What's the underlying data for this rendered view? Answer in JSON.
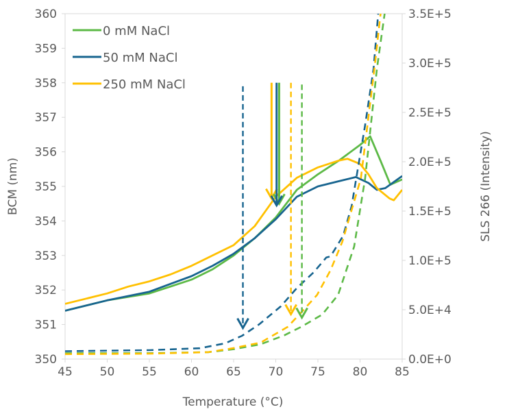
{
  "chart_data": {
    "type": "line",
    "xlabel": "Temperature (°C)",
    "ylabel": "BCM (nm)",
    "y2label": "SLS 266 (Intensity)",
    "xlim": [
      45,
      85
    ],
    "ylim": [
      350,
      360
    ],
    "y2lim": [
      0,
      350000
    ],
    "xticks": [
      45,
      50,
      55,
      60,
      65,
      70,
      75,
      80,
      85
    ],
    "yticks": [
      350,
      351,
      352,
      353,
      354,
      355,
      356,
      357,
      358,
      359,
      360
    ],
    "y2ticks": [
      "0.0E+0",
      "5.0E+4",
      "1.0E+5",
      "1.5E+5",
      "2.0E+5",
      "2.5E+5",
      "3.0E+5",
      "3.5E+5"
    ],
    "grid": false,
    "legend_position": "top-left",
    "series": [
      {
        "name": "0 mM NaCl",
        "color": "#5cb946",
        "axis": "left",
        "style": "solid",
        "x": [
          45,
          50,
          55,
          60,
          62.5,
          65,
          67.5,
          70,
          72.5,
          75,
          77.5,
          80,
          81.2,
          82.5,
          83.6,
          85
        ],
        "y": [
          351.4,
          351.7,
          351.9,
          352.3,
          352.6,
          353.0,
          353.5,
          354.1,
          354.9,
          355.35,
          355.75,
          356.2,
          356.45,
          355.7,
          355.05,
          355.2
        ]
      },
      {
        "name": "50 mM NaCl",
        "color": "#17648f",
        "axis": "left",
        "style": "solid",
        "x": [
          45,
          50,
          55,
          60,
          62.5,
          65,
          67.5,
          70,
          72.5,
          75,
          77.5,
          79.5,
          81,
          82,
          83,
          85
        ],
        "y": [
          351.4,
          351.7,
          351.95,
          352.4,
          352.7,
          353.05,
          353.5,
          354.05,
          354.7,
          355.0,
          355.15,
          355.27,
          355.1,
          354.9,
          354.95,
          355.3
        ]
      },
      {
        "name": "250 mM NaCl",
        "color": "#ffc000",
        "axis": "left",
        "style": "solid",
        "x": [
          45,
          47.5,
          50,
          52.5,
          55,
          57.5,
          60,
          62.5,
          65,
          67.5,
          70,
          72.5,
          75,
          77.5,
          78.5,
          80,
          81,
          82,
          83.5,
          84,
          85
        ],
        "y": [
          351.6,
          351.75,
          351.9,
          352.1,
          352.25,
          352.45,
          352.7,
          353.0,
          353.3,
          353.85,
          354.7,
          355.25,
          355.55,
          355.75,
          355.8,
          355.65,
          355.35,
          354.95,
          354.65,
          354.6,
          354.9
        ]
      },
      {
        "color": "#5cb946",
        "axis": "right",
        "style": "dashed",
        "x": [
          45,
          55,
          62,
          65,
          68.2,
          71,
          73,
          75.5,
          77.4,
          79.3,
          80.6,
          82,
          83
        ],
        "y": [
          6000,
          6000,
          7000,
          10000,
          15000,
          24000,
          32600,
          45000,
          65000,
          114000,
          183000,
          294000,
          355000
        ]
      },
      {
        "color": "#17648f",
        "axis": "right",
        "style": "dashed",
        "x": [
          45,
          55,
          61,
          64,
          66,
          68,
          70.6,
          72.5,
          74.5,
          76,
          76.5,
          78,
          79,
          80.6,
          81.6,
          82.2
        ],
        "y": [
          8000,
          9000,
          11000,
          16000,
          23600,
          35000,
          53500,
          72000,
          88000,
          103000,
          104000,
          125000,
          155000,
          237000,
          294000,
          355000
        ]
      },
      {
        "color": "#ffc000",
        "axis": "right",
        "style": "dashed",
        "x": [
          45,
          55,
          62,
          64.9,
          68.2,
          71.4,
          73,
          74.9,
          76.5,
          77.9,
          80.1,
          81.7,
          82.5
        ],
        "y": [
          5000,
          5500,
          7000,
          11000,
          16700,
          32600,
          47000,
          65000,
          90000,
          119000,
          183000,
          294000,
          355000
        ]
      }
    ],
    "annotations": [
      {
        "type": "arrow",
        "style": "solid",
        "color": "#ffc000",
        "x": 69.5,
        "y_from": 358,
        "y_to": 354.65
      },
      {
        "type": "arrow",
        "style": "solid",
        "color": "#5cb946",
        "x": 70.4,
        "y_from": 358,
        "y_to": 354.5
      },
      {
        "type": "arrow",
        "style": "solid",
        "color": "#17648f",
        "x": 70.1,
        "y_from": 358,
        "y_to": 354.45
      },
      {
        "type": "arrow",
        "style": "dashed",
        "color": "#17648f",
        "x": 66.1,
        "y_from": 357.9,
        "y_to": 350.9
      },
      {
        "type": "arrow",
        "style": "dashed",
        "color": "#ffc000",
        "x": 71.8,
        "y_from": 358,
        "y_to": 351.3
      },
      {
        "type": "arrow",
        "style": "dashed",
        "color": "#5cb946",
        "x": 73.1,
        "y_from": 357.95,
        "y_to": 351.2
      }
    ]
  }
}
